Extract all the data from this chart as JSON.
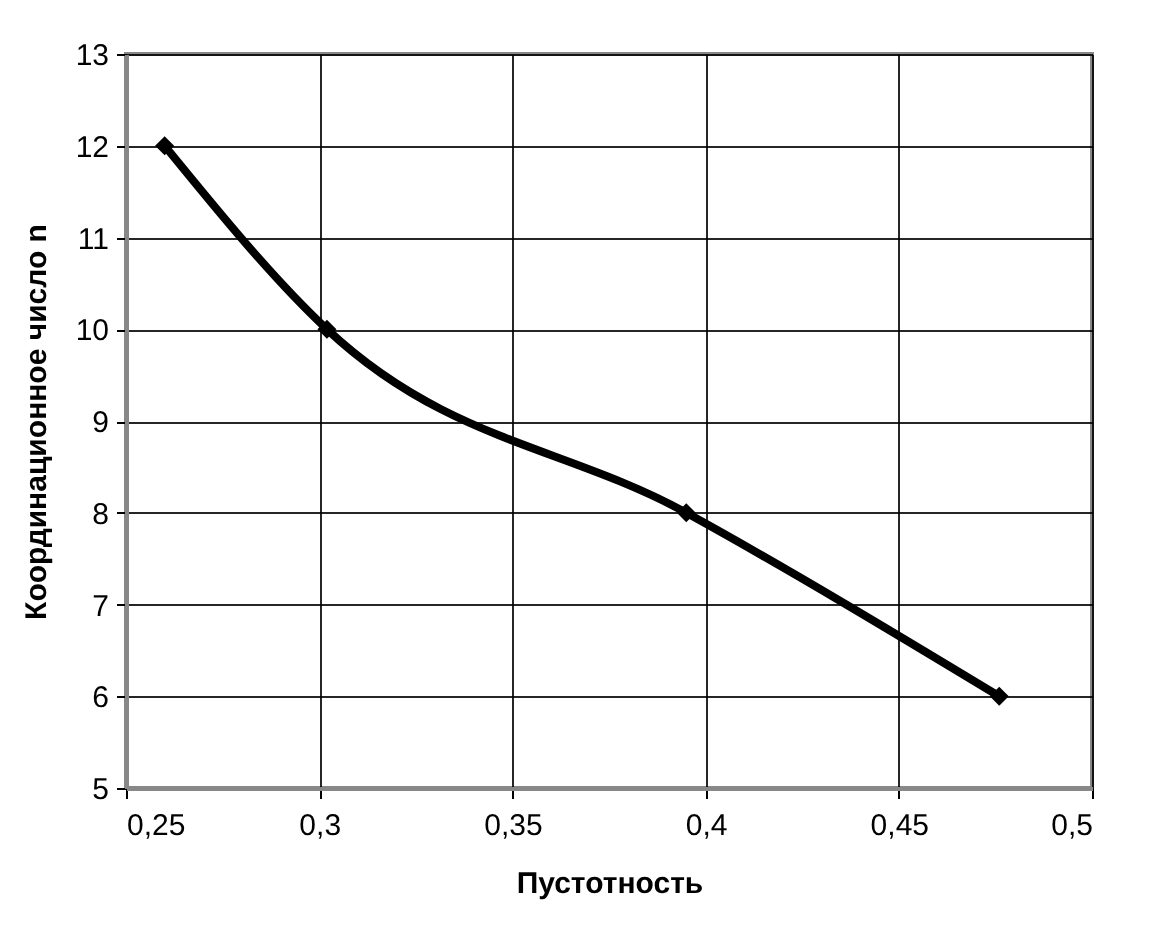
{
  "chart_data": {
    "type": "line",
    "xlabel": "Пустотность",
    "ylabel": "Координационное число n",
    "x": [
      0.26,
      0.302,
      0.395,
      0.476
    ],
    "series": [
      {
        "color": "#000000",
        "values": [
          12,
          10,
          8,
          6
        ]
      }
    ],
    "xlim": [
      0.25,
      0.5
    ],
    "xticks": [
      {
        "value": 0.25,
        "label": "0,25"
      },
      {
        "value": 0.3,
        "label": "0,3"
      },
      {
        "value": 0.35,
        "label": "0,35"
      },
      {
        "value": 0.4,
        "label": "0,4"
      },
      {
        "value": 0.45,
        "label": "0,45"
      },
      {
        "value": 0.5,
        "label": "0,5"
      }
    ],
    "ylim": [
      5,
      13
    ],
    "yticks": [
      5,
      6,
      7,
      8,
      9,
      10,
      11,
      12,
      13
    ],
    "grid": true,
    "marker": "diamond",
    "line_style": "solid"
  }
}
